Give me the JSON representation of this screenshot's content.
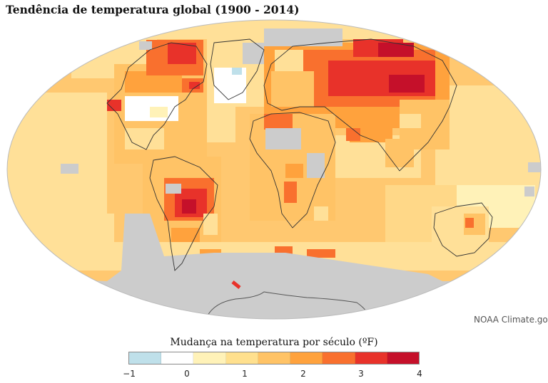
{
  "title": "Tendência de temperatura global (1900 - 2014)",
  "credit": "NOAA Climate.gov",
  "legend": {
    "title": "Mudança na temperatura por século (ºF)",
    "colors": [
      "#bfe0ea",
      "#ffffff",
      "#fff2b8",
      "#ffe08e",
      "#ffc366",
      "#ffa23d",
      "#f9702e",
      "#e8322a",
      "#c5102a"
    ],
    "ticks": [
      "−1",
      "0",
      "1",
      "2",
      "3",
      "4"
    ]
  },
  "colors": {
    "ocean_base": "#ffc870",
    "ocean_light": "#ffe098",
    "no_data": "#cccccc",
    "cold": "#bfe0ea",
    "neutral": "#ffffff",
    "warm_strong": "#e8322a",
    "warm_max": "#c5102a"
  }
}
